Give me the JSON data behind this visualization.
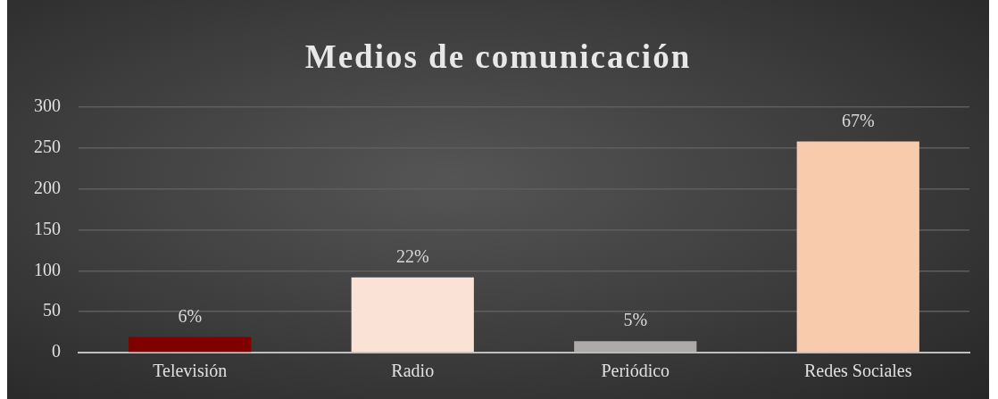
{
  "chart_data": {
    "type": "bar",
    "title": "Medios de comunicación",
    "categories": [
      "Televisión",
      "Radio",
      "Periódico",
      "Redes Sociales"
    ],
    "values": [
      19,
      92,
      14,
      258
    ],
    "colors": [
      "#800000",
      "#fae3d6",
      "#aeaaaa",
      "#f8cbad"
    ],
    "annotations": [
      {
        "text": "6%",
        "x": "Televisión",
        "y": 19
      },
      {
        "text": "22%",
        "x": "Radio",
        "y": 92
      },
      {
        "text": "5%",
        "x": "Periódico",
        "y": 14
      },
      {
        "text": "67%",
        "x": "Redes Sociales",
        "y": 258
      }
    ],
    "ylim": [
      0,
      300
    ],
    "yticks": [
      0,
      50,
      100,
      150,
      200,
      250,
      300
    ],
    "grid": "y",
    "legend": false
  }
}
